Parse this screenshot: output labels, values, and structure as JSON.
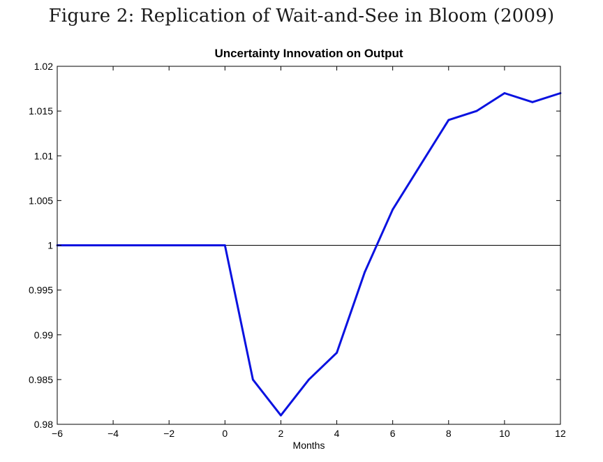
{
  "figure_caption": "Figure 2: Replication of Wait-and-See in Bloom (2009)",
  "chart_data": {
    "type": "line",
    "title": "Uncertainty Innovation on Output",
    "xlabel": "Months",
    "ylabel": "",
    "xlim": [
      -6,
      12
    ],
    "ylim": [
      0.98,
      1.02
    ],
    "x_ticks": [
      -6,
      -4,
      -2,
      0,
      2,
      4,
      6,
      8,
      10,
      12
    ],
    "x_tick_labels": [
      "−6",
      "−4",
      "−2",
      "0",
      "2",
      "4",
      "6",
      "8",
      "10",
      "12"
    ],
    "y_ticks": [
      0.98,
      0.985,
      0.99,
      0.995,
      1,
      1.005,
      1.01,
      1.015,
      1.02
    ],
    "y_tick_labels": [
      "0.98",
      "0.985",
      "0.99",
      "0.995",
      "1",
      "1.005",
      "1.01",
      "1.015",
      "1.02"
    ],
    "grid": false,
    "reference_line": {
      "y": 1,
      "color": "#000000"
    },
    "series": [
      {
        "color": "#0a12e0",
        "x": [
          -6,
          -5,
          -4,
          -3,
          -2,
          -1,
          0,
          1,
          2,
          3,
          4,
          5,
          6,
          7,
          8,
          9,
          10,
          11,
          12
        ],
        "y": [
          1.0,
          1.0,
          1.0,
          1.0,
          1.0,
          1.0,
          1.0,
          0.985,
          0.981,
          0.985,
          0.988,
          0.997,
          1.004,
          1.009,
          1.014,
          1.015,
          1.017,
          1.016,
          1.017
        ]
      }
    ]
  }
}
